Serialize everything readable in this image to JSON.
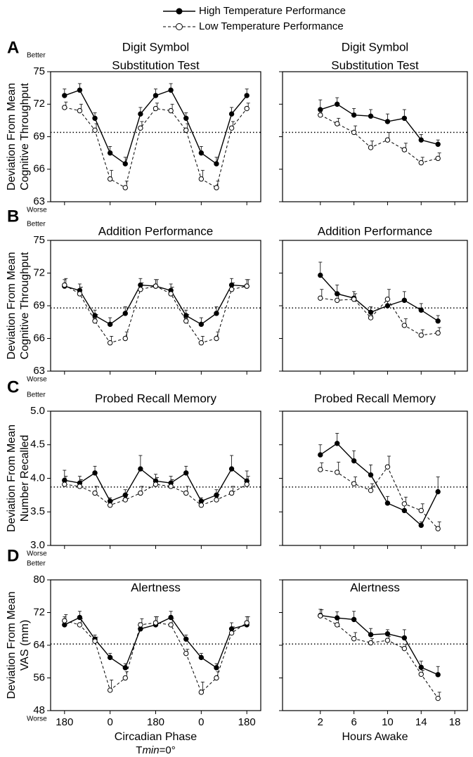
{
  "chart_data": [
    {
      "type": "line",
      "panel": "A",
      "better": "Better",
      "worse": "Worse",
      "title": [
        "Digit Symbol",
        "Substitution Test"
      ],
      "ylabel": [
        "Deviation From Mean",
        "Cognitive Throughput"
      ],
      "x": [
        0,
        60,
        120,
        180,
        240,
        300,
        360,
        420,
        480,
        540,
        600,
        660,
        720
      ],
      "xlim": [
        -55,
        775
      ],
      "xticks": [
        {
          "value": 0,
          "label": "180"
        },
        {
          "value": 180,
          "label": "0"
        },
        {
          "value": 360,
          "label": "180"
        },
        {
          "value": 540,
          "label": "0"
        },
        {
          "value": 720,
          "label": "180"
        }
      ],
      "xtick_labels": false,
      "ylim": [
        63,
        75
      ],
      "yticks": [
        63,
        66,
        69,
        72,
        75
      ],
      "ytick_labels": true,
      "reference_line": 69.4,
      "series": [
        {
          "name": "High Temperature Performance",
          "color": "#000000",
          "marker": "filled",
          "dash": "solid",
          "values": [
            72.8,
            73.3,
            70.7,
            67.5,
            66.5,
            71.1,
            72.8,
            73.3,
            70.7,
            67.5,
            66.5,
            71.1,
            72.8
          ],
          "errors": [
            0.6,
            0.6,
            0.5,
            0.6,
            0.6,
            0.6,
            0.6,
            0.6,
            0.5,
            0.6,
            0.6,
            0.6,
            0.6
          ]
        },
        {
          "name": "Low Temperature Performance",
          "color": "#000000",
          "marker": "open",
          "dash": "dashed",
          "values": [
            71.7,
            71.4,
            69.6,
            65.1,
            64.3,
            69.8,
            71.6,
            71.4,
            69.6,
            65.1,
            64.3,
            69.8,
            71.6
          ],
          "errors": [
            0.5,
            0.6,
            0.6,
            0.8,
            0.6,
            0.6,
            0.5,
            0.6,
            0.6,
            0.8,
            0.6,
            0.6,
            0.5
          ]
        }
      ]
    },
    {
      "type": "line",
      "title": [
        "Digit Symbol",
        "Substitution Test"
      ],
      "x": [
        2,
        4,
        6,
        8,
        10,
        12,
        14,
        16
      ],
      "xlim": [
        -2.5,
        19.5
      ],
      "xticks": [
        2,
        6,
        10,
        14,
        18
      ],
      "xtick_labels": false,
      "ylim": [
        63,
        75
      ],
      "yticks": [
        63,
        66,
        69,
        72,
        75
      ],
      "ytick_labels": false,
      "reference_line": 69.4,
      "series": [
        {
          "color": "#000000",
          "marker": "filled",
          "dash": "solid",
          "values": [
            71.5,
            72.0,
            71.0,
            70.9,
            70.4,
            70.7,
            68.7,
            68.3
          ],
          "errors": [
            0.9,
            0.6,
            0.6,
            0.6,
            0.7,
            0.8,
            0.5,
            0.4
          ]
        },
        {
          "color": "#000000",
          "marker": "open",
          "dash": "dashed",
          "values": [
            71.0,
            70.2,
            69.4,
            68.0,
            68.7,
            67.8,
            66.6,
            67.0
          ],
          "errors": [
            0.6,
            0.5,
            0.6,
            0.6,
            0.7,
            0.6,
            0.5,
            0.5
          ]
        }
      ]
    },
    {
      "type": "line",
      "panel": "B",
      "better": "Better",
      "worse": "Worse",
      "title": [
        "Addition Performance"
      ],
      "ylabel": [
        "Deviation From Mean",
        "Cognitive Throughput"
      ],
      "x": [
        0,
        60,
        120,
        180,
        240,
        300,
        360,
        420,
        480,
        540,
        600,
        660,
        720
      ],
      "xlim": [
        -55,
        775
      ],
      "xticks": [
        {
          "value": 0,
          "label": "180"
        },
        {
          "value": 180,
          "label": "0"
        },
        {
          "value": 360,
          "label": "180"
        },
        {
          "value": 540,
          "label": "0"
        },
        {
          "value": 720,
          "label": "180"
        }
      ],
      "xtick_labels": false,
      "ylim": [
        63,
        75
      ],
      "yticks": [
        63,
        66,
        69,
        72,
        75
      ],
      "ytick_labels": true,
      "reference_line": 68.8,
      "series": [
        {
          "color": "#000000",
          "marker": "filled",
          "dash": "solid",
          "values": [
            70.8,
            70.4,
            68.1,
            67.3,
            68.3,
            70.9,
            70.8,
            70.4,
            68.1,
            67.3,
            68.3,
            70.9,
            70.8
          ],
          "errors": [
            0.6,
            0.6,
            0.5,
            0.6,
            0.6,
            0.6,
            0.6,
            0.6,
            0.5,
            0.6,
            0.6,
            0.6,
            0.6
          ]
        },
        {
          "color": "#000000",
          "marker": "open",
          "dash": "dashed",
          "values": [
            70.9,
            70.1,
            67.6,
            65.6,
            66.0,
            70.5,
            70.8,
            70.1,
            67.6,
            65.6,
            66.0,
            70.5,
            70.8
          ],
          "errors": [
            0.6,
            0.6,
            0.6,
            0.6,
            0.6,
            0.6,
            0.6,
            0.6,
            0.6,
            0.6,
            0.6,
            0.6,
            0.6
          ]
        }
      ]
    },
    {
      "type": "line",
      "title": [
        "Addition Performance"
      ],
      "x": [
        2,
        4,
        6,
        8,
        10,
        12,
        14,
        16
      ],
      "xlim": [
        -2.5,
        19.5
      ],
      "xticks": [
        2,
        6,
        10,
        14,
        18
      ],
      "xtick_labels": false,
      "ylim": [
        63,
        75
      ],
      "yticks": [
        63,
        66,
        69,
        72,
        75
      ],
      "ytick_labels": false,
      "reference_line": 68.8,
      "series": [
        {
          "color": "#000000",
          "marker": "filled",
          "dash": "solid",
          "values": [
            71.8,
            70.1,
            69.7,
            68.4,
            69.0,
            69.5,
            68.6,
            67.6
          ],
          "errors": [
            1.2,
            0.8,
            0.6,
            0.5,
            0.7,
            0.8,
            0.6,
            0.5
          ]
        },
        {
          "color": "#000000",
          "marker": "open",
          "dash": "dashed",
          "values": [
            69.7,
            69.5,
            69.6,
            67.9,
            69.6,
            67.2,
            66.3,
            66.5
          ],
          "errors": [
            0.8,
            0.6,
            0.5,
            0.6,
            0.9,
            0.6,
            0.5,
            0.5
          ]
        }
      ]
    },
    {
      "type": "line",
      "panel": "C",
      "better": "Better",
      "worse": "Worse",
      "title": [
        "Probed Recall Memory"
      ],
      "ylabel": [
        "Deviation From Mean",
        "Number Recalled"
      ],
      "x": [
        0,
        60,
        120,
        180,
        240,
        300,
        360,
        420,
        480,
        540,
        600,
        660,
        720
      ],
      "xlim": [
        -55,
        775
      ],
      "xticks": [
        {
          "value": 0,
          "label": "180"
        },
        {
          "value": 180,
          "label": "0"
        },
        {
          "value": 360,
          "label": "180"
        },
        {
          "value": 540,
          "label": "0"
        },
        {
          "value": 720,
          "label": "180"
        }
      ],
      "xtick_labels": false,
      "ylim": [
        3,
        5
      ],
      "yticks": [
        {
          "value": 3,
          "label": "3.0"
        },
        3.5,
        {
          "value": 4,
          "label": "4.0"
        },
        4.5,
        {
          "value": 5,
          "label": "5.0"
        }
      ],
      "ytick_labels": true,
      "reference_line": 3.87,
      "series": [
        {
          "color": "#000000",
          "marker": "filled",
          "dash": "solid",
          "values": [
            3.97,
            3.93,
            4.08,
            3.66,
            3.75,
            4.14,
            3.96,
            3.93,
            4.08,
            3.66,
            3.75,
            4.14,
            3.96
          ],
          "errors": [
            0.15,
            0.1,
            0.1,
            0.05,
            0.08,
            0.2,
            0.1,
            0.1,
            0.1,
            0.05,
            0.08,
            0.2,
            0.15
          ]
        },
        {
          "color": "#000000",
          "marker": "open",
          "dash": "dashed",
          "values": [
            3.91,
            3.88,
            3.78,
            3.6,
            3.68,
            3.78,
            3.91,
            3.88,
            3.78,
            3.6,
            3.68,
            3.78,
            3.91
          ],
          "errors": [
            0.12,
            0.1,
            0.1,
            0.06,
            0.08,
            0.1,
            0.1,
            0.1,
            0.1,
            0.06,
            0.08,
            0.1,
            0.12
          ]
        }
      ]
    },
    {
      "type": "line",
      "title": [
        "Probed Recall Memory"
      ],
      "x": [
        2,
        4,
        6,
        8,
        10,
        12,
        14,
        16
      ],
      "xlim": [
        -2.5,
        19.5
      ],
      "xticks": [
        2,
        6,
        10,
        14,
        18
      ],
      "xtick_labels": false,
      "ylim": [
        3,
        5
      ],
      "yticks": [
        {
          "value": 3,
          "label": "3.0"
        },
        3.5,
        {
          "value": 4,
          "label": "4.0"
        },
        4.5,
        {
          "value": 5,
          "label": "5.0"
        }
      ],
      "ytick_labels": false,
      "reference_line": 3.87,
      "series": [
        {
          "color": "#000000",
          "marker": "filled",
          "dash": "solid",
          "values": [
            4.35,
            4.52,
            4.26,
            4.05,
            3.63,
            3.52,
            3.3,
            3.8
          ],
          "errors": [
            0.15,
            0.15,
            0.15,
            0.15,
            0.1,
            0.1,
            0.05,
            0.22
          ]
        },
        {
          "color": "#000000",
          "marker": "open",
          "dash": "dashed",
          "values": [
            4.13,
            4.09,
            3.92,
            3.82,
            4.17,
            3.62,
            3.52,
            3.25
          ],
          "errors": [
            0.1,
            0.15,
            0.1,
            0.1,
            0.16,
            0.1,
            0.1,
            0.1
          ]
        }
      ]
    },
    {
      "type": "line",
      "panel": "D",
      "better": "Better",
      "worse": "Worse",
      "title": [
        "Alertness"
      ],
      "ylabel": [
        "Deviation From Mean",
        "VAS (mm)"
      ],
      "xlabel": "Circadian Phase",
      "xlabel_note": [
        "T",
        "min",
        "=0°"
      ],
      "x": [
        0,
        60,
        120,
        180,
        240,
        300,
        360,
        420,
        480,
        540,
        600,
        660,
        720
      ],
      "xlim": [
        -55,
        775
      ],
      "xticks": [
        {
          "value": 0,
          "label": "180"
        },
        {
          "value": 180,
          "label": "0"
        },
        {
          "value": 360,
          "label": "180"
        },
        {
          "value": 540,
          "label": "0"
        },
        {
          "value": 720,
          "label": "180"
        }
      ],
      "xtick_labels": true,
      "ylim": [
        48,
        80
      ],
      "yticks": [
        48,
        56,
        64,
        72,
        80
      ],
      "ytick_labels": true,
      "reference_line": 64.3,
      "series": [
        {
          "color": "#000000",
          "marker": "filled",
          "dash": "solid",
          "values": [
            69,
            70.8,
            65.5,
            61,
            58.5,
            68,
            69,
            70.8,
            65.5,
            61,
            58.5,
            68,
            69
          ],
          "errors": [
            2,
            1.5,
            1,
            1,
            1,
            1.5,
            2,
            1.5,
            1,
            1,
            1,
            1.5,
            2
          ]
        },
        {
          "color": "#000000",
          "marker": "open",
          "dash": "dashed",
          "values": [
            70,
            69,
            65,
            53,
            56,
            69,
            69.5,
            69,
            62,
            52.5,
            56,
            67,
            69.5
          ],
          "errors": [
            1.5,
            1.5,
            1,
            2.5,
            1.5,
            1.5,
            1.5,
            1.5,
            1,
            2.5,
            1.5,
            1.5,
            1.5
          ]
        }
      ]
    },
    {
      "type": "line",
      "title": [
        "Alertness"
      ],
      "xlabel": "Hours Awake",
      "x": [
        2,
        4,
        6,
        8,
        10,
        12,
        14,
        16
      ],
      "xlim": [
        -2.5,
        19.5
      ],
      "xticks": [
        2,
        6,
        10,
        14,
        18
      ],
      "xtick_labels": true,
      "ylim": [
        48,
        80
      ],
      "yticks": [
        48,
        56,
        64,
        72,
        80
      ],
      "ytick_labels": false,
      "reference_line": 64.3,
      "series": [
        {
          "color": "#000000",
          "marker": "filled",
          "dash": "solid",
          "values": [
            71.3,
            70.7,
            70.3,
            66.6,
            66.8,
            65.8,
            58.6,
            56.8
          ],
          "errors": [
            1.5,
            1.5,
            2,
            1.5,
            1,
            2,
            1.5,
            2
          ]
        },
        {
          "color": "#000000",
          "marker": "open",
          "dash": "dashed",
          "values": [
            71.2,
            69.0,
            65.6,
            64.6,
            65.2,
            63.2,
            56.9,
            51.0
          ],
          "errors": [
            1.5,
            1.5,
            1.5,
            1,
            1,
            1,
            1,
            1.5
          ]
        }
      ]
    }
  ]
}
